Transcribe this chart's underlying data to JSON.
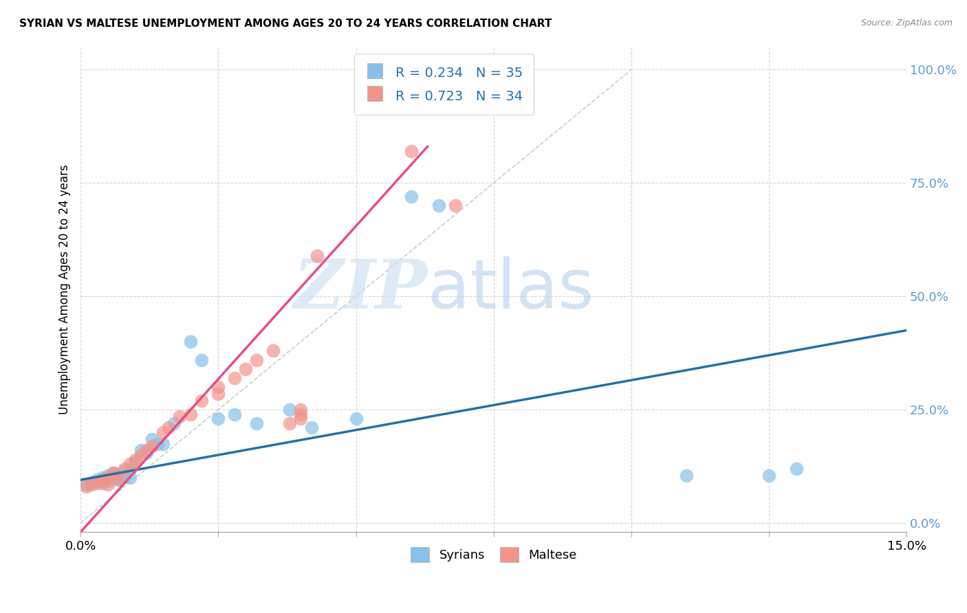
{
  "title": "SYRIAN VS MALTESE UNEMPLOYMENT AMONG AGES 20 TO 24 YEARS CORRELATION CHART",
  "source": "Source: ZipAtlas.com",
  "ylabel": "Unemployment Among Ages 20 to 24 years",
  "xlim": [
    0.0,
    0.15
  ],
  "ylim": [
    -0.02,
    1.05
  ],
  "yticks": [
    0.0,
    0.25,
    0.5,
    0.75,
    1.0
  ],
  "ytick_labels": [
    "0.0%",
    "25.0%",
    "50.0%",
    "75.0%",
    "100.0%"
  ],
  "watermark_zip": "ZIP",
  "watermark_atlas": "atlas",
  "legend_blue_r": "R = 0.234",
  "legend_blue_n": "N = 35",
  "legend_pink_r": "R = 0.723",
  "legend_pink_n": "N = 34",
  "blue_color": "#85C1E9",
  "pink_color": "#F1948A",
  "blue_line_color": "#2471A3",
  "pink_line_color": "#E74C8B",
  "diagonal_color": "#CCCCCC",
  "background_color": "#FFFFFF",
  "syrians_x": [
    0.001,
    0.002,
    0.003,
    0.004,
    0.004,
    0.005,
    0.005,
    0.006,
    0.006,
    0.007,
    0.007,
    0.008,
    0.008,
    0.009,
    0.009,
    0.01,
    0.011,
    0.012,
    0.013,
    0.014,
    0.015,
    0.017,
    0.02,
    0.022,
    0.025,
    0.028,
    0.032,
    0.038,
    0.042,
    0.05,
    0.06,
    0.065,
    0.11,
    0.125,
    0.13
  ],
  "syrians_y": [
    0.085,
    0.09,
    0.095,
    0.088,
    0.1,
    0.092,
    0.105,
    0.098,
    0.11,
    0.095,
    0.108,
    0.102,
    0.115,
    0.1,
    0.12,
    0.135,
    0.16,
    0.155,
    0.185,
    0.175,
    0.175,
    0.22,
    0.4,
    0.36,
    0.23,
    0.24,
    0.22,
    0.25,
    0.21,
    0.23,
    0.72,
    0.7,
    0.105,
    0.105,
    0.12
  ],
  "maltese_x": [
    0.001,
    0.002,
    0.003,
    0.004,
    0.004,
    0.005,
    0.005,
    0.006,
    0.006,
    0.007,
    0.008,
    0.009,
    0.01,
    0.011,
    0.012,
    0.013,
    0.015,
    0.016,
    0.018,
    0.02,
    0.022,
    0.025,
    0.025,
    0.028,
    0.03,
    0.032,
    0.035,
    0.038,
    0.04,
    0.04,
    0.04,
    0.043,
    0.06,
    0.068
  ],
  "maltese_y": [
    0.08,
    0.085,
    0.088,
    0.092,
    0.095,
    0.085,
    0.1,
    0.105,
    0.11,
    0.095,
    0.12,
    0.13,
    0.14,
    0.15,
    0.16,
    0.17,
    0.2,
    0.21,
    0.235,
    0.24,
    0.27,
    0.285,
    0.3,
    0.32,
    0.34,
    0.36,
    0.38,
    0.22,
    0.23,
    0.24,
    0.25,
    0.59,
    0.82,
    0.7
  ],
  "blue_intercept": 0.095,
  "blue_slope": 2.2,
  "pink_intercept": -0.02,
  "pink_slope": 13.5
}
